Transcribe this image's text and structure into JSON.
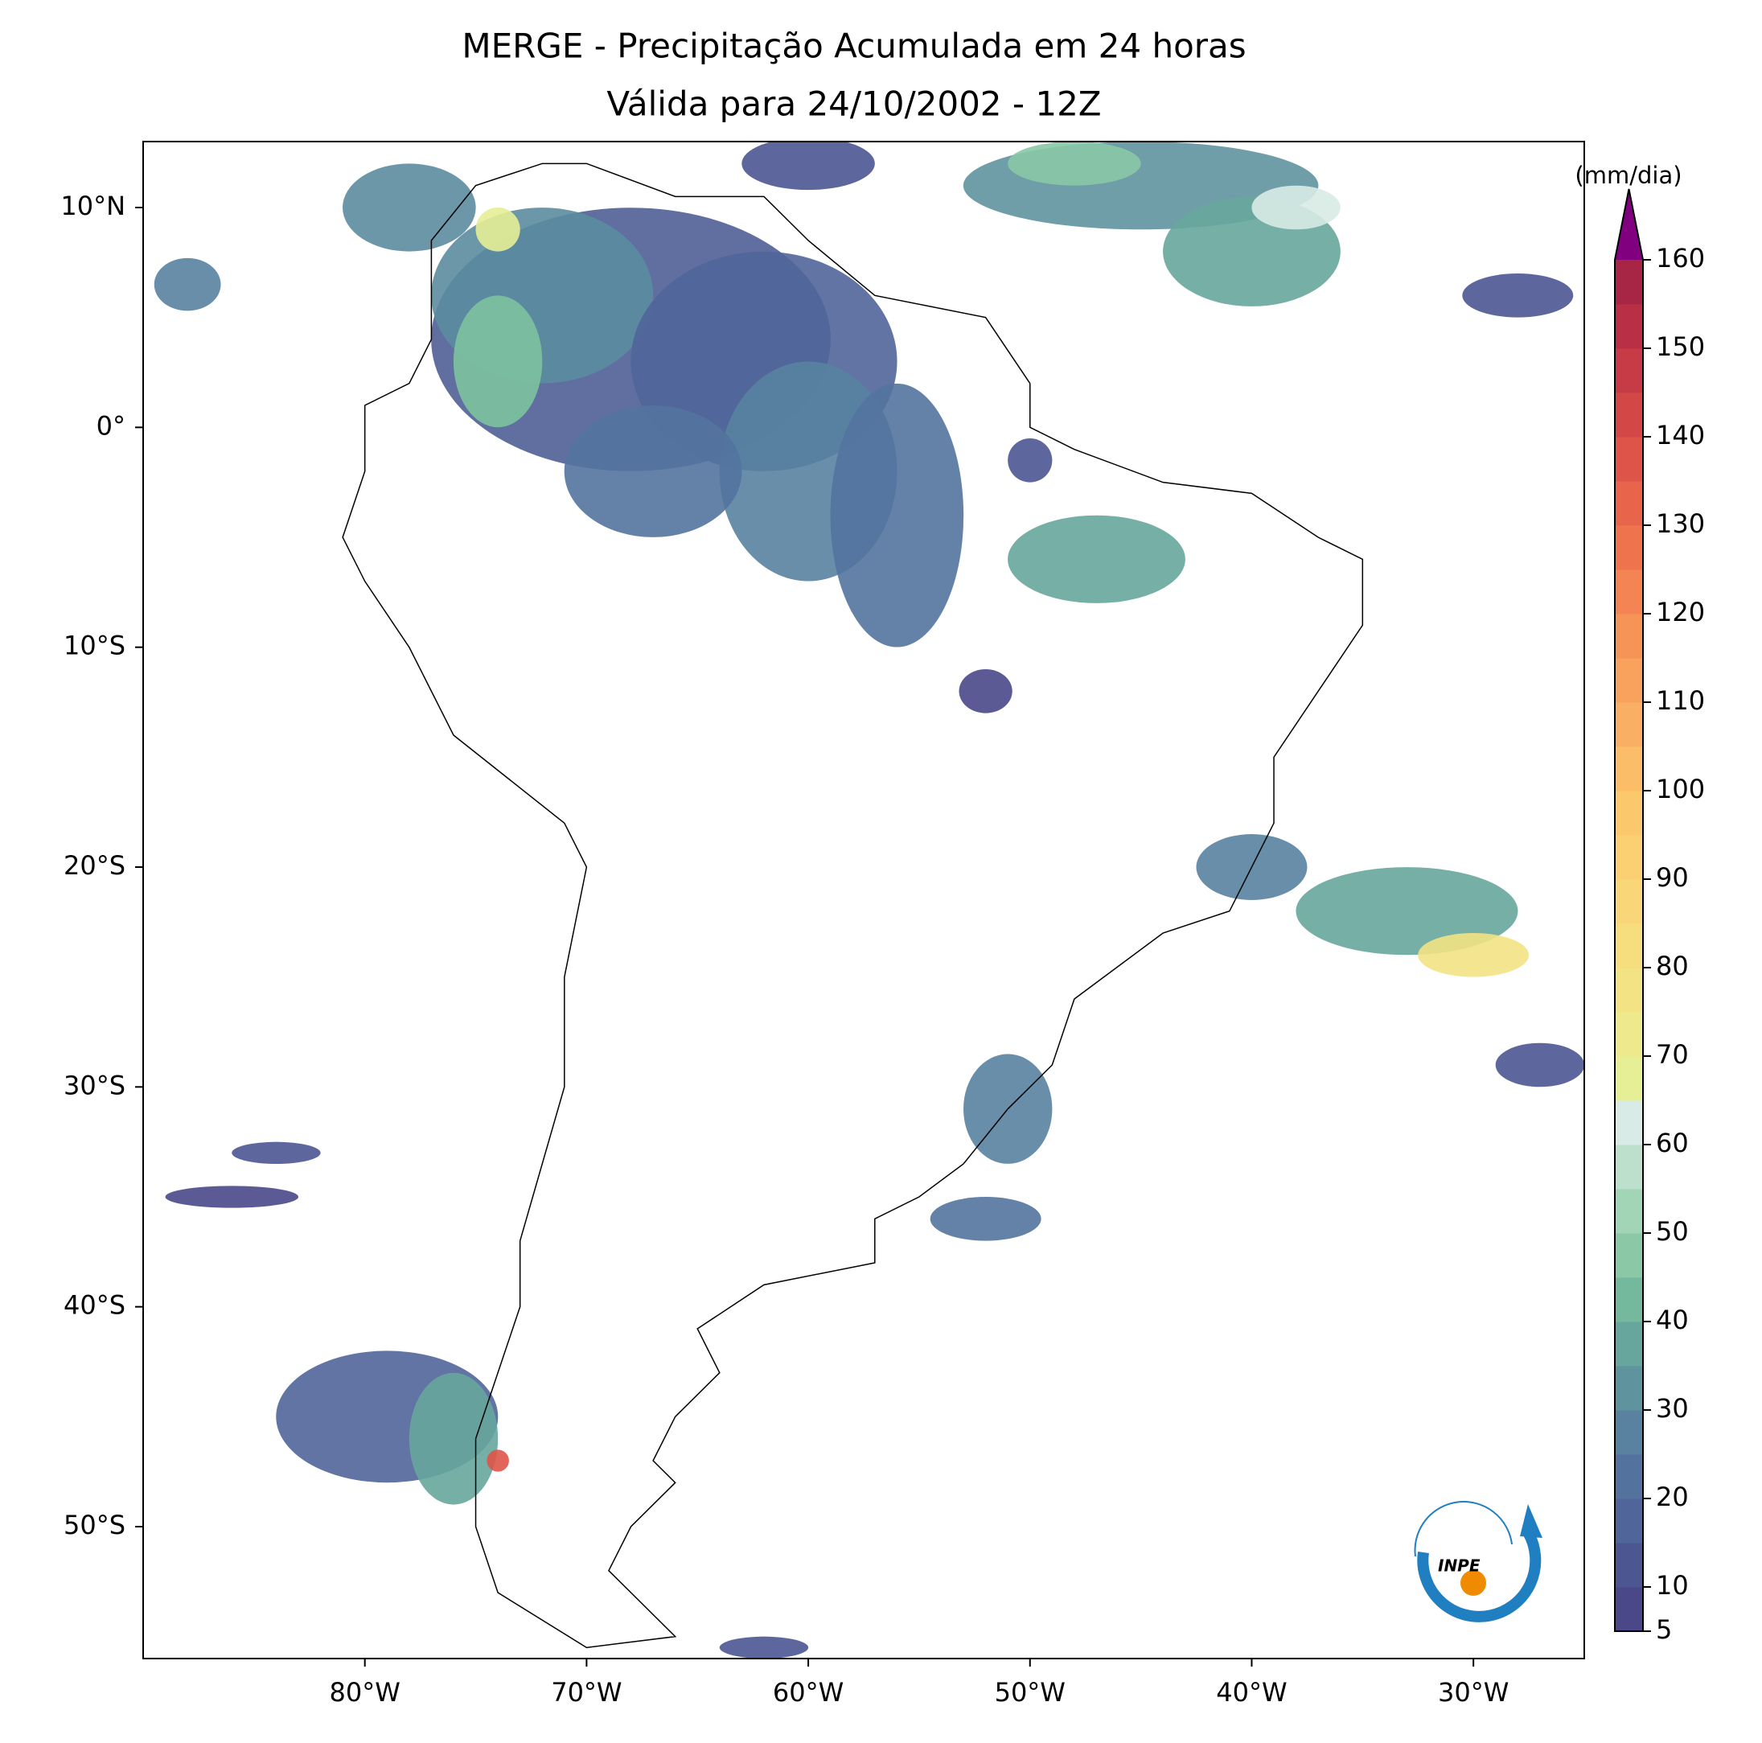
{
  "title": "MERGE - Precipitação Acumulada em 24 horas",
  "subtitle": "Válida para 24/10/2002 - 12Z",
  "map": {
    "xlim": [
      -90,
      -25
    ],
    "ylim": [
      -56,
      13
    ],
    "xticks": [
      {
        "value": -80,
        "label": "80°W"
      },
      {
        "value": -70,
        "label": "70°W"
      },
      {
        "value": -60,
        "label": "60°W"
      },
      {
        "value": -50,
        "label": "50°W"
      },
      {
        "value": -40,
        "label": "40°W"
      },
      {
        "value": -30,
        "label": "30°W"
      }
    ],
    "yticks": [
      {
        "value": 10,
        "label": "10°N"
      },
      {
        "value": 0,
        "label": "0°"
      },
      {
        "value": -10,
        "label": "10°S"
      },
      {
        "value": -20,
        "label": "20°S"
      },
      {
        "value": -30,
        "label": "30°S"
      },
      {
        "value": -40,
        "label": "40°S"
      },
      {
        "value": -50,
        "label": "50°S"
      }
    ]
  },
  "colorbar": {
    "label": "(mm/dia)",
    "lim": [
      5,
      160
    ],
    "ticks": [
      5,
      10,
      20,
      30,
      40,
      50,
      60,
      70,
      80,
      90,
      100,
      110,
      120,
      130,
      140,
      150,
      160
    ],
    "colors": [
      "#4a4889",
      "#4c5792",
      "#506599",
      "#53739e",
      "#5882a0",
      "#5f939e",
      "#67a69c",
      "#74b99e",
      "#8ac8a6",
      "#a2d4b6",
      "#bde0cd",
      "#d8ebe6",
      "#e6ee96",
      "#eee98d",
      "#f3e384",
      "#f6dd7d",
      "#f9d779",
      "#fbd072",
      "#fcc86c",
      "#fbbd68",
      "#f9b064",
      "#f8a25e",
      "#f69458",
      "#f48453",
      "#ef744e",
      "#e8644b",
      "#df5449",
      "#d44747",
      "#c73b47",
      "#b93046",
      "#a82645"
    ],
    "extend_color": "#800080"
  },
  "logo": "INPE"
}
